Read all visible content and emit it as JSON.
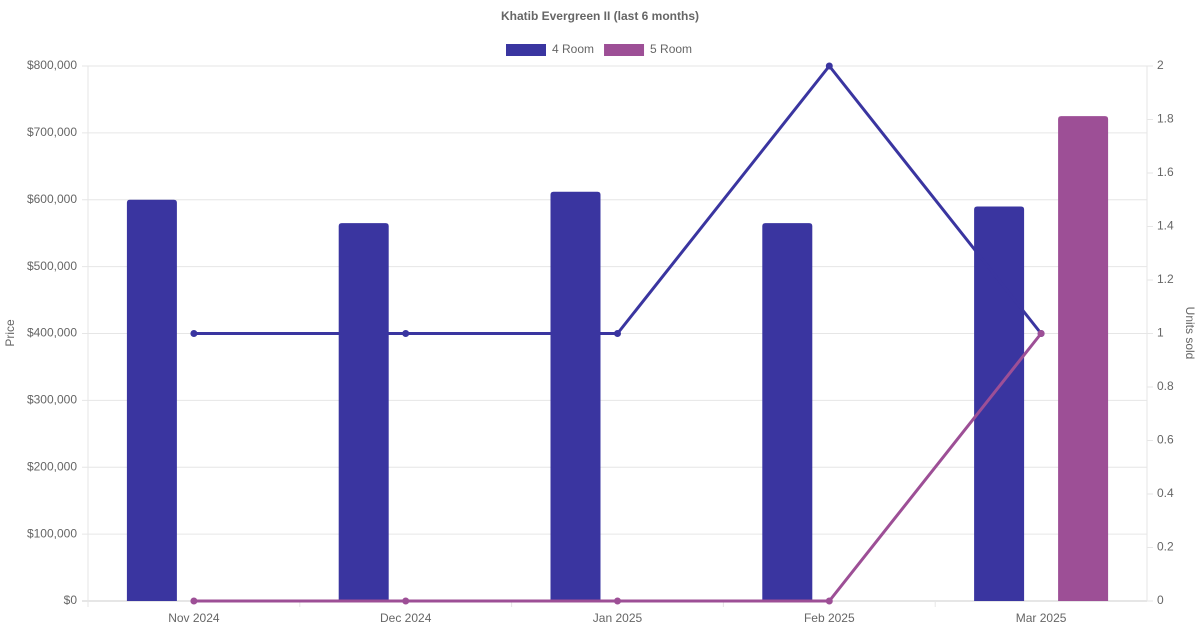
{
  "chart_data": {
    "type": "bar-line",
    "title": "Khatib Evergreen II (last 6 months)",
    "y_label": "Price",
    "y2_label": "Units sold",
    "categories": [
      "Nov 2024",
      "Dec 2024",
      "Jan 2025",
      "Feb 2025",
      "Mar 2025"
    ],
    "series": [
      {
        "name": "4 Room",
        "color": "#3a35a0",
        "values": [
          600000,
          565000,
          612000,
          565000,
          590000
        ],
        "y2_values": [
          1,
          1,
          1,
          2,
          1
        ]
      },
      {
        "name": "5 Room",
        "color": "#9d4f96",
        "values": [
          null,
          null,
          null,
          null,
          725000
        ],
        "y2_values": [
          0,
          0,
          0,
          0,
          1
        ]
      }
    ],
    "ylim": [
      0,
      800000
    ],
    "yticks": [
      {
        "value": 0,
        "label": "$0"
      },
      {
        "value": 100000,
        "label": "$100,000"
      },
      {
        "value": 200000,
        "label": "$200,000"
      },
      {
        "value": 300000,
        "label": "$300,000"
      },
      {
        "value": 400000,
        "label": "$400,000"
      },
      {
        "value": 500000,
        "label": "$500,000"
      },
      {
        "value": 600000,
        "label": "$600,000"
      },
      {
        "value": 700000,
        "label": "$700,000"
      },
      {
        "value": 800000,
        "label": "$800,000"
      }
    ],
    "y2lim": [
      0,
      2
    ],
    "y2ticks": [
      0,
      0.2,
      0.4,
      0.6,
      0.8,
      1,
      1.2,
      1.4,
      1.6,
      1.8,
      2
    ],
    "grid": true,
    "legend": "top"
  }
}
